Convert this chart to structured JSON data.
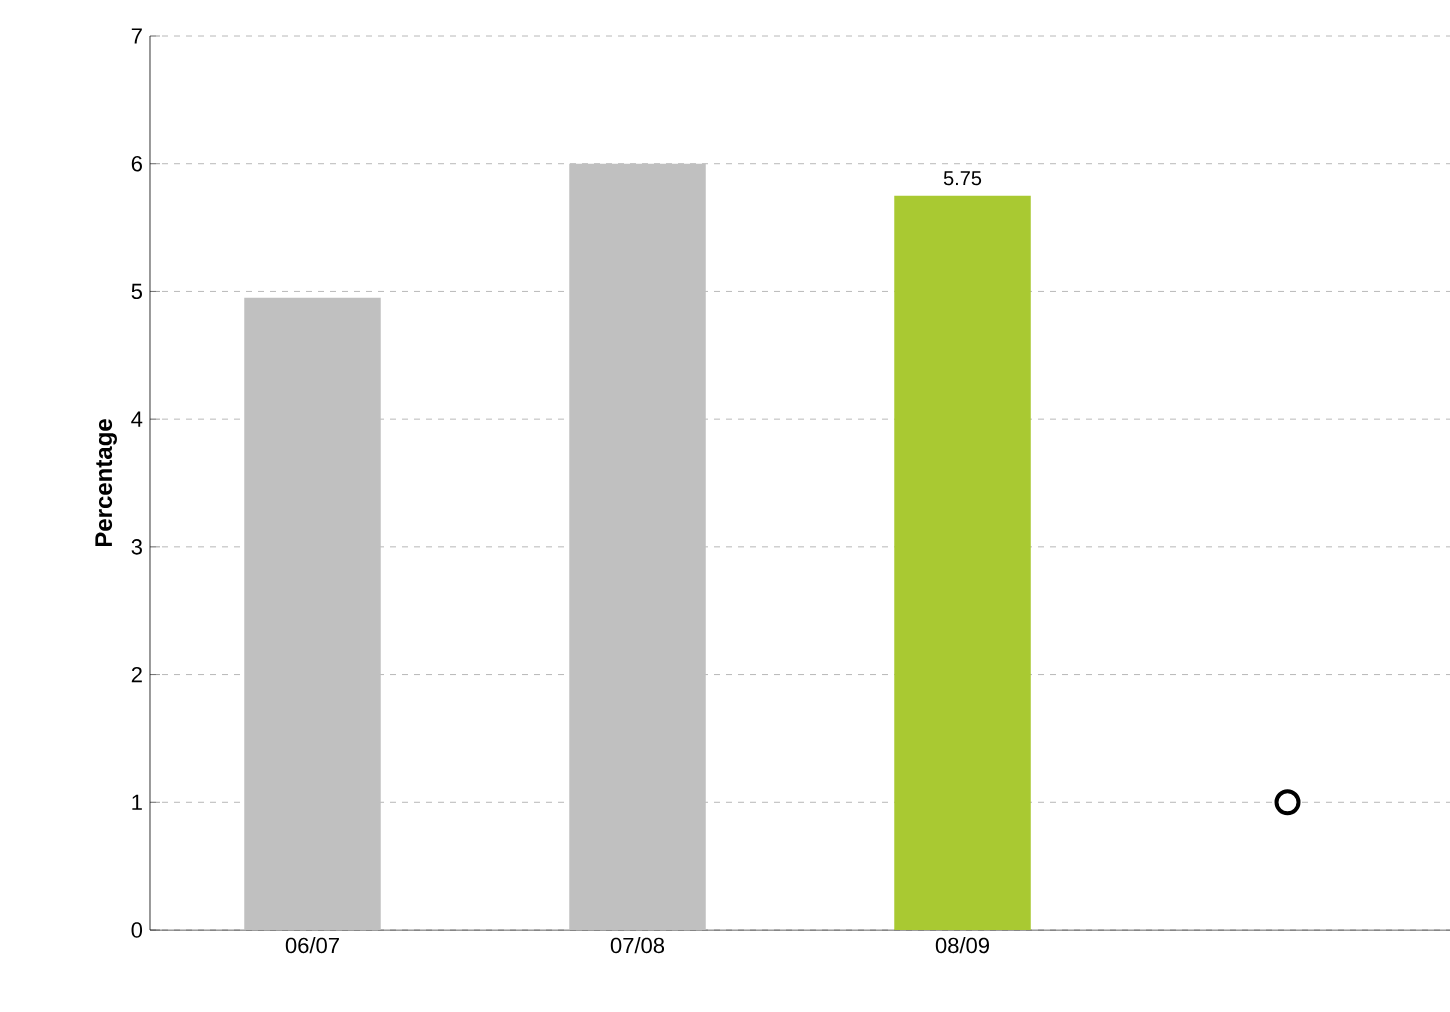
{
  "chart_data": {
    "type": "bar",
    "ylabel": "Percentage",
    "categories": [
      "06/07",
      "07/08",
      "08/09",
      null
    ],
    "series": [
      {
        "colors": [
          "#c0c0c0",
          "#c0c0c0",
          "#a9c932",
          "#c0c0c0"
        ],
        "values": [
          4.95,
          6,
          5.75,
          null
        ],
        "value_labels": [
          null,
          null,
          "5.75",
          null
        ]
      },
      {
        "type": "scatter",
        "color": "#ffffff",
        "marker": "circle",
        "values": [
          null,
          null,
          null,
          1
        ]
      }
    ],
    "ylim": [
      0,
      7
    ],
    "yticks": [
      0,
      1,
      2,
      3,
      4,
      5,
      6,
      7
    ],
    "grid": "y"
  }
}
